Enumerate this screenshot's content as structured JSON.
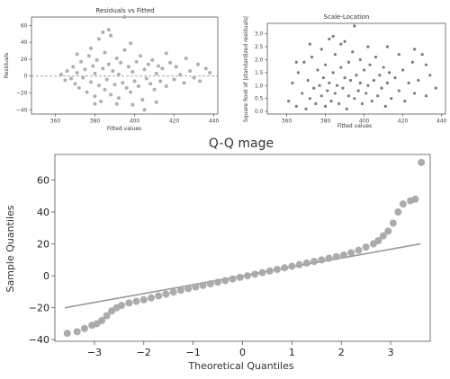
{
  "chart_data": [
    {
      "type": "scatter",
      "title": "Residuals vs Fitted",
      "xlabel": "Fitted values",
      "ylabel": "Residuals",
      "xlim": [
        348,
        442
      ],
      "ylim": [
        -45,
        70
      ],
      "xticks": [
        360,
        380,
        400,
        420,
        440
      ],
      "yticks": [
        -40,
        -20,
        0,
        20,
        40,
        60
      ],
      "reference_line": {
        "y": 0,
        "style": "dashed"
      },
      "color": "#a6a6a6",
      "points": [
        [
          363,
          2
        ],
        [
          365,
          -5
        ],
        [
          366,
          6
        ],
        [
          368,
          -3
        ],
        [
          369,
          11
        ],
        [
          370,
          -9
        ],
        [
          371,
          4
        ],
        [
          372,
          -14
        ],
        [
          373,
          17
        ],
        [
          374,
          -2
        ],
        [
          375,
          8
        ],
        [
          376,
          -19
        ],
        [
          377,
          24
        ],
        [
          378,
          -7
        ],
        [
          378,
          33
        ],
        [
          379,
          12
        ],
        [
          380,
          -24
        ],
        [
          380,
          3
        ],
        [
          381,
          19
        ],
        [
          382,
          -11
        ],
        [
          382,
          44
        ],
        [
          383,
          -30
        ],
        [
          384,
          9
        ],
        [
          385,
          -16
        ],
        [
          385,
          28
        ],
        [
          386,
          -4
        ],
        [
          387,
          14
        ],
        [
          388,
          -22
        ],
        [
          388,
          48
        ],
        [
          389,
          6
        ],
        [
          390,
          -10
        ],
        [
          391,
          21
        ],
        [
          392,
          -26
        ],
        [
          392,
          2
        ],
        [
          393,
          16
        ],
        [
          394,
          -8
        ],
        [
          395,
          31
        ],
        [
          396,
          -14
        ],
        [
          397,
          11
        ],
        [
          398,
          -19
        ],
        [
          398,
          39
        ],
        [
          399,
          5
        ],
        [
          400,
          -6
        ],
        [
          401,
          17
        ],
        [
          402,
          -12
        ],
        [
          403,
          24
        ],
        [
          404,
          -28
        ],
        [
          405,
          8
        ],
        [
          406,
          -3
        ],
        [
          407,
          14
        ],
        [
          408,
          -9
        ],
        [
          409,
          19
        ],
        [
          410,
          -16
        ],
        [
          411,
          3
        ],
        [
          412,
          12
        ],
        [
          413,
          -6
        ],
        [
          414,
          9
        ],
        [
          416,
          -12
        ],
        [
          418,
          16
        ],
        [
          420,
          -4
        ],
        [
          421,
          11
        ],
        [
          423,
          2
        ],
        [
          425,
          -8
        ],
        [
          426,
          21
        ],
        [
          428,
          6
        ],
        [
          430,
          -2
        ],
        [
          432,
          14
        ],
        [
          433,
          -6
        ],
        [
          436,
          9
        ],
        [
          438,
          4
        ],
        [
          384,
          52
        ],
        [
          387,
          55
        ],
        [
          380,
          -33
        ],
        [
          395,
          70
        ],
        [
          405,
          -40
        ],
        [
          399,
          -34
        ],
        [
          371,
          26
        ],
        [
          416,
          27
        ],
        [
          411,
          -31
        ],
        [
          391,
          -33
        ]
      ]
    },
    {
      "type": "scatter",
      "title": "Scale-Location",
      "xlabel": "Fitted values",
      "ylabel": "Square Root of |standardized residuals|",
      "xlim": [
        350,
        442
      ],
      "ylim": [
        -0.1,
        3.4
      ],
      "xticks": [
        360,
        380,
        400,
        420,
        440
      ],
      "yticks": [
        0.0,
        0.5,
        1.0,
        1.5,
        2.0,
        2.5,
        3.0
      ],
      "color": "#6e6e6e",
      "points": [
        [
          361,
          0.4
        ],
        [
          363,
          1.1
        ],
        [
          365,
          0.2
        ],
        [
          366,
          1.5
        ],
        [
          368,
          0.7
        ],
        [
          369,
          1.9
        ],
        [
          370,
          0.1
        ],
        [
          371,
          1.2
        ],
        [
          372,
          0.5
        ],
        [
          373,
          2.1
        ],
        [
          374,
          0.9
        ],
        [
          375,
          0.3
        ],
        [
          376,
          1.6
        ],
        [
          377,
          1.0
        ],
        [
          378,
          2.4
        ],
        [
          378,
          0.6
        ],
        [
          379,
          1.3
        ],
        [
          380,
          0.2
        ],
        [
          380,
          1.8
        ],
        [
          381,
          0.8
        ],
        [
          382,
          2.8
        ],
        [
          382,
          1.1
        ],
        [
          383,
          0.4
        ],
        [
          384,
          1.5
        ],
        [
          385,
          2.2
        ],
        [
          385,
          0.7
        ],
        [
          386,
          1.0
        ],
        [
          387,
          0.3
        ],
        [
          388,
          1.7
        ],
        [
          388,
          2.6
        ],
        [
          389,
          0.9
        ],
        [
          390,
          1.3
        ],
        [
          391,
          0.1
        ],
        [
          392,
          1.9
        ],
        [
          392,
          0.6
        ],
        [
          393,
          1.2
        ],
        [
          394,
          2.3
        ],
        [
          395,
          0.5
        ],
        [
          396,
          1.4
        ],
        [
          397,
          0.8
        ],
        [
          398,
          2.0
        ],
        [
          398,
          1.1
        ],
        [
          399,
          0.3
        ],
        [
          400,
          1.6
        ],
        [
          401,
          0.7
        ],
        [
          402,
          1.0
        ],
        [
          403,
          1.8
        ],
        [
          404,
          0.4
        ],
        [
          405,
          1.2
        ],
        [
          406,
          2.1
        ],
        [
          407,
          0.6
        ],
        [
          408,
          1.4
        ],
        [
          409,
          0.9
        ],
        [
          410,
          1.7
        ],
        [
          411,
          0.2
        ],
        [
          412,
          1.1
        ],
        [
          413,
          1.5
        ],
        [
          414,
          0.5
        ],
        [
          416,
          1.3
        ],
        [
          418,
          0.8
        ],
        [
          420,
          1.6
        ],
        [
          421,
          0.4
        ],
        [
          423,
          1.1
        ],
        [
          425,
          1.9
        ],
        [
          426,
          0.7
        ],
        [
          428,
          1.2
        ],
        [
          430,
          2.2
        ],
        [
          432,
          0.6
        ],
        [
          434,
          1.4
        ],
        [
          437,
          0.9
        ],
        [
          395,
          3.3
        ],
        [
          384,
          2.9
        ],
        [
          372,
          2.6
        ],
        [
          412,
          2.5
        ],
        [
          426,
          2.4
        ],
        [
          432,
          1.8
        ],
        [
          365,
          1.9
        ],
        [
          418,
          2.2
        ],
        [
          390,
          2.7
        ],
        [
          402,
          2.5
        ]
      ]
    },
    {
      "type": "scatter",
      "title": "Q-Q mage",
      "xlabel": "Theoretical Quantiles",
      "ylabel": "Sample Quantiles",
      "xlim": [
        -3.8,
        3.8
      ],
      "ylim": [
        -41,
        76
      ],
      "xticks": [
        -3,
        -2,
        -1,
        0,
        1,
        2,
        3
      ],
      "yticks": [
        -40,
        -20,
        0,
        20,
        40,
        60
      ],
      "reference_line": {
        "x": [
          -3.6,
          3.6
        ],
        "y": [
          -20,
          20
        ]
      },
      "color": "#a6a6a6",
      "points": [
        [
          -3.55,
          -36
        ],
        [
          -3.35,
          -35
        ],
        [
          -3.2,
          -33
        ],
        [
          -3.05,
          -31
        ],
        [
          -2.95,
          -30
        ],
        [
          -2.85,
          -28
        ],
        [
          -2.75,
          -25
        ],
        [
          -2.65,
          -22
        ],
        [
          -2.55,
          -20
        ],
        [
          -2.45,
          -18.5
        ],
        [
          -2.3,
          -17
        ],
        [
          -2.15,
          -16
        ],
        [
          -2.0,
          -15
        ],
        [
          -1.85,
          -13.8
        ],
        [
          -1.7,
          -12.6
        ],
        [
          -1.55,
          -11.4
        ],
        [
          -1.4,
          -10.2
        ],
        [
          -1.25,
          -9
        ],
        [
          -1.1,
          -8
        ],
        [
          -0.95,
          -7
        ],
        [
          -0.8,
          -6
        ],
        [
          -0.65,
          -5
        ],
        [
          -0.5,
          -4
        ],
        [
          -0.35,
          -3
        ],
        [
          -0.2,
          -2
        ],
        [
          -0.05,
          -1
        ],
        [
          0.1,
          0
        ],
        [
          0.25,
          1
        ],
        [
          0.4,
          2
        ],
        [
          0.55,
          3
        ],
        [
          0.7,
          4
        ],
        [
          0.85,
          5
        ],
        [
          1.0,
          6
        ],
        [
          1.15,
          7
        ],
        [
          1.3,
          8
        ],
        [
          1.45,
          9
        ],
        [
          1.6,
          10
        ],
        [
          1.75,
          11
        ],
        [
          1.9,
          12
        ],
        [
          2.05,
          13
        ],
        [
          2.2,
          14.5
        ],
        [
          2.35,
          16
        ],
        [
          2.5,
          18
        ],
        [
          2.65,
          20
        ],
        [
          2.75,
          22
        ],
        [
          2.85,
          25
        ],
        [
          2.95,
          28
        ],
        [
          3.05,
          33
        ],
        [
          3.15,
          40
        ],
        [
          3.25,
          45
        ],
        [
          3.4,
          47
        ],
        [
          3.5,
          48
        ],
        [
          3.62,
          71
        ]
      ]
    }
  ]
}
